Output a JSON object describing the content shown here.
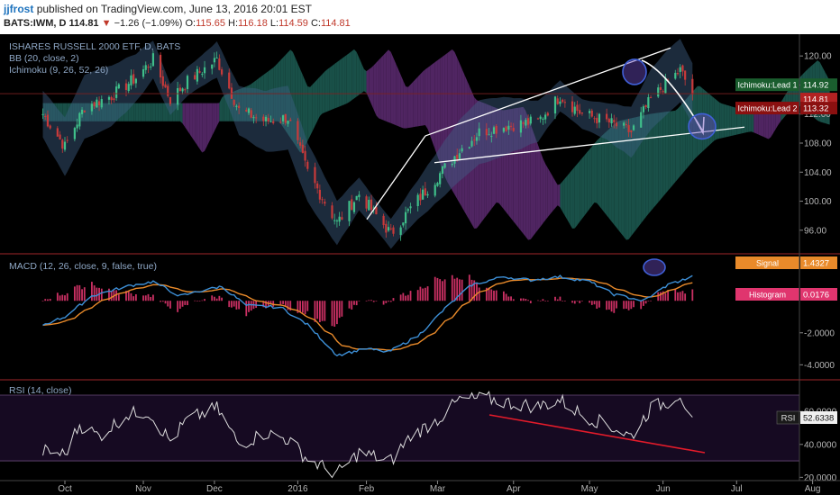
{
  "header": {
    "author": "jjfrost",
    "published": "published on TradingView.com, June 13, 2016 20:01 EST",
    "symbol": "BATS:IWM, D",
    "last": "114.81",
    "change": "−1.26 (−1.09%)",
    "o_label": "O:",
    "o": "115.65",
    "h_label": "H:",
    "h": "116.18",
    "l_label": "L:",
    "l": "114.59",
    "c_label": "C:",
    "c": "114.81"
  },
  "colors": {
    "background": "#000000",
    "cloud_bull": "#1d5e55",
    "cloud_bear": "#5e2b73",
    "bb_fill": "#3d5f86",
    "candle_up": "#3fbf8a",
    "candle_down": "#c83a3a",
    "macd": "#3d8fd6",
    "signal": "#e98a2a",
    "histogram": "#e0356e",
    "rsi": "#dddddd",
    "divergence": "#e31b2a",
    "circle": "#6b4cc2"
  },
  "chart_data": [
    {
      "type": "candlestick",
      "title": "ISHARES RUSSELL 2000 ETF, D, BATS",
      "overlays": [
        "BB (20, close, 2)",
        "Ichimoku (9, 26, 52, 26)"
      ],
      "ylim": [
        93.5,
        122.5
      ],
      "yticks": [
        "120.00",
        "116.00",
        "112.00",
        "108.00",
        "104.00",
        "100.00",
        "96.00"
      ],
      "ytick_values": [
        120,
        116,
        112,
        108,
        104,
        100,
        96
      ],
      "price_path": [
        [
          "2015-09-22",
          112
        ],
        [
          "2015-10-01",
          107.5
        ],
        [
          "2015-10-09",
          113
        ],
        [
          "2015-10-20",
          114.5
        ],
        [
          "2015-10-30",
          117
        ],
        [
          "2015-11-06",
          119.5
        ],
        [
          "2015-11-13",
          114
        ],
        [
          "2015-11-20",
          116.5
        ],
        [
          "2015-12-02",
          119.5
        ],
        [
          "2015-12-11",
          112.5
        ],
        [
          "2015-12-22",
          111
        ],
        [
          "2015-12-31",
          111.5
        ],
        [
          "2016-01-08",
          104
        ],
        [
          "2016-01-20",
          97
        ],
        [
          "2016-01-29",
          101
        ],
        [
          "2016-02-11",
          95.5
        ],
        [
          "2016-02-19",
          99
        ],
        [
          "2016-02-29",
          103
        ],
        [
          "2016-03-10",
          107
        ],
        [
          "2016-03-18",
          109.5
        ],
        [
          "2016-03-31",
          110.5
        ],
        [
          "2016-04-11",
          111
        ],
        [
          "2016-04-20",
          114.5
        ],
        [
          "2016-04-29",
          112
        ],
        [
          "2016-05-09",
          111
        ],
        [
          "2016-05-19",
          109.5
        ],
        [
          "2016-05-27",
          114
        ],
        [
          "2016-06-03",
          116.5
        ],
        [
          "2016-06-08",
          118
        ],
        [
          "2016-06-13",
          114.8
        ]
      ],
      "labels": [
        {
          "name": "Ichimoku:Lead 1",
          "value": "114.92",
          "color": "#1a5d2e"
        },
        {
          "name": "",
          "value": "114.81",
          "color": "#b22222"
        },
        {
          "name": "Ichimoku:Lead 2",
          "value": "113.32",
          "color": "#8b1010"
        }
      ],
      "annotations": [
        "rising wedge",
        "forecast arrow",
        "target circle"
      ]
    },
    {
      "type": "line",
      "title": "MACD (12, 26, close, 9, false, true)",
      "ylim": [
        -4.6,
        2.6
      ],
      "yticks": [
        "-2.0000",
        "-4.0000"
      ],
      "ytick_values": [
        -2,
        -4
      ],
      "series": [
        {
          "name": "MACD",
          "color": "#3d8fd6"
        },
        {
          "name": "Signal",
          "color": "#e98a2a"
        },
        {
          "name": "Histogram",
          "color": "#e0356e"
        }
      ],
      "macd_path": [
        [
          "2015-09-22",
          -1.5
        ],
        [
          "2015-10-01",
          -1.0
        ],
        [
          "2015-10-12",
          0.3
        ],
        [
          "2015-10-26",
          0.9
        ],
        [
          "2015-11-06",
          1.2
        ],
        [
          "2015-11-17",
          0.3
        ],
        [
          "2015-11-25",
          0.6
        ],
        [
          "2015-12-04",
          0.9
        ],
        [
          "2015-12-14",
          -0.3
        ],
        [
          "2015-12-28",
          -0.4
        ],
        [
          "2016-01-08",
          -1.5
        ],
        [
          "2016-01-20",
          -3.4
        ],
        [
          "2016-02-01",
          -3.0
        ],
        [
          "2016-02-10",
          -3.2
        ],
        [
          "2016-02-22",
          -2.2
        ],
        [
          "2016-03-04",
          -0.5
        ],
        [
          "2016-03-15",
          1.0
        ],
        [
          "2016-03-28",
          1.5
        ],
        [
          "2016-04-08",
          1.3
        ],
        [
          "2016-04-20",
          1.5
        ],
        [
          "2016-05-02",
          1.2
        ],
        [
          "2016-05-12",
          0.4
        ],
        [
          "2016-05-24",
          0.0
        ],
        [
          "2016-06-03",
          1.0
        ],
        [
          "2016-06-13",
          1.5
        ]
      ],
      "labels": [
        {
          "name": "Signal",
          "value": "1.4327",
          "color": "#e98a2a"
        },
        {
          "name": "Histogram",
          "value": "0.0176",
          "color": "#e0356e"
        }
      ]
    },
    {
      "type": "line",
      "title": "RSI (14, close)",
      "ylim": [
        18,
        76
      ],
      "yticks": [
        "60.0000",
        "40.0000",
        "20.0000"
      ],
      "ytick_values": [
        60,
        40,
        20
      ],
      "bands": [
        30,
        70
      ],
      "rsi_path": [
        [
          "2015-09-22",
          36
        ],
        [
          "2015-10-01",
          34
        ],
        [
          "2015-10-07",
          52
        ],
        [
          "2015-10-15",
          45
        ],
        [
          "2015-10-26",
          58
        ],
        [
          "2015-11-04",
          60
        ],
        [
          "2015-11-13",
          42
        ],
        [
          "2015-11-20",
          55
        ],
        [
          "2015-12-02",
          62
        ],
        [
          "2015-12-11",
          40
        ],
        [
          "2015-12-22",
          47
        ],
        [
          "2015-12-31",
          43
        ],
        [
          "2016-01-08",
          31
        ],
        [
          "2016-01-20",
          22
        ],
        [
          "2016-01-29",
          35
        ],
        [
          "2016-02-11",
          30
        ],
        [
          "2016-02-19",
          45
        ],
        [
          "2016-03-01",
          55
        ],
        [
          "2016-03-10",
          67
        ],
        [
          "2016-03-21",
          68
        ],
        [
          "2016-03-31",
          65
        ],
        [
          "2016-04-11",
          63
        ],
        [
          "2016-04-20",
          67
        ],
        [
          "2016-04-29",
          58
        ],
        [
          "2016-05-09",
          52
        ],
        [
          "2016-05-19",
          45
        ],
        [
          "2016-05-27",
          62
        ],
        [
          "2016-06-03",
          66
        ],
        [
          "2016-06-08",
          71
        ],
        [
          "2016-06-13",
          52.6
        ]
      ],
      "labels": [
        {
          "name": "RSI",
          "value": "52.6338",
          "color": "#e8e8e8"
        }
      ]
    }
  ],
  "xaxis": {
    "ticks": [
      "Oct",
      "Nov",
      "Dec",
      "2016",
      "Feb",
      "Mar",
      "Apr",
      "May",
      "Jun",
      "Jul",
      "Aug"
    ],
    "dates": [
      "2015-10-01",
      "2015-11-02",
      "2015-12-01",
      "2016-01-04",
      "2016-02-01",
      "2016-03-01",
      "2016-04-01",
      "2016-05-02",
      "2016-06-01",
      "2016-07-01",
      "2016-08-01"
    ]
  }
}
